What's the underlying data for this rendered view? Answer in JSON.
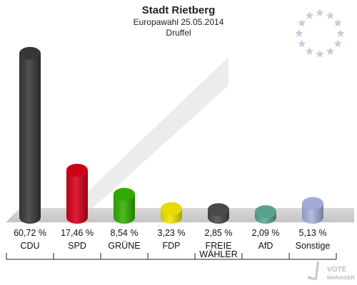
{
  "chart_data": {
    "type": "bar",
    "title": "Stadt Rietberg",
    "subtitle_lines": [
      "Europawahl 25.05.2014",
      "Druffel"
    ],
    "categories": [
      {
        "lines": [
          "CDU"
        ]
      },
      {
        "lines": [
          "SPD"
        ]
      },
      {
        "lines": [
          "GRÜNE"
        ]
      },
      {
        "lines": [
          "FDP"
        ]
      },
      {
        "lines": [
          "FREIE",
          "WÄHLER"
        ]
      },
      {
        "lines": [
          "AfD"
        ]
      },
      {
        "lines": [
          "Sonstige"
        ]
      }
    ],
    "values": [
      60.72,
      17.46,
      8.54,
      3.23,
      2.85,
      2.09,
      5.13
    ],
    "value_labels": [
      "60,72 %",
      "17,46 %",
      "8,54 %",
      "3,23 %",
      "2,85 %",
      "2,09 %",
      "5,13 %"
    ],
    "colors": [
      "#3a3a3a",
      "#d8001b",
      "#33b300",
      "#f2e600",
      "#4d4d4d",
      "#5fa896",
      "#a8b4e0"
    ],
    "ylim": [
      0,
      62
    ],
    "grid": false,
    "legend": "none"
  },
  "logo": {
    "line1": "VOTE",
    "line2": "MANAGER"
  },
  "emblem": {
    "name": "eu-stars-icon",
    "star_color": "#c9ccd8"
  }
}
